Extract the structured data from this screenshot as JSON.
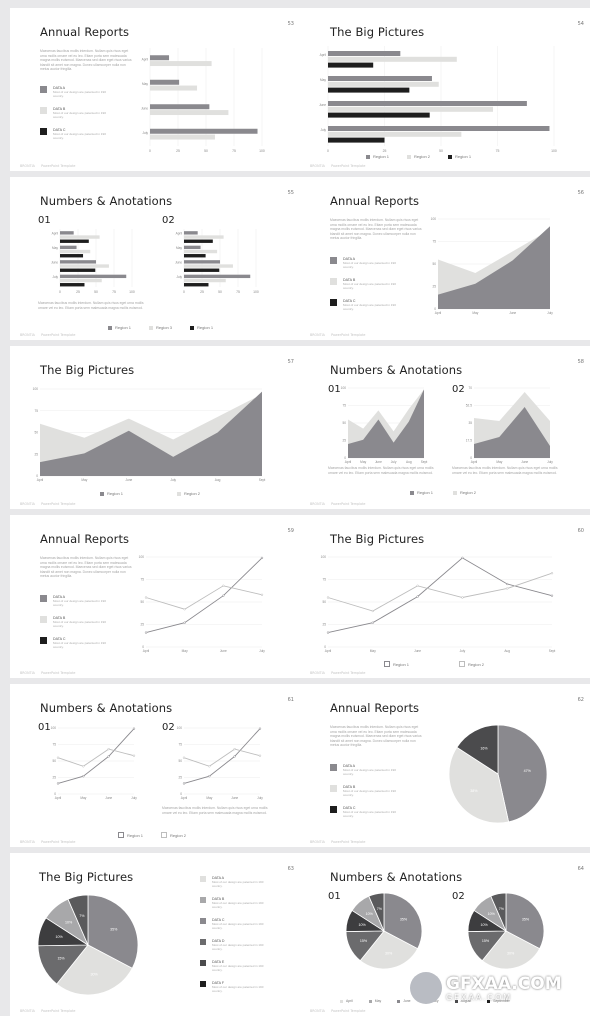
{
  "colors": {
    "dark": "#8a898e",
    "light": "#e0e0de",
    "black": "#1e1e1e",
    "grid": "#ececec"
  },
  "slides": [
    {
      "num": "53",
      "title": "Annual Reports"
    },
    {
      "num": "54",
      "title": "The Big Pictures"
    },
    {
      "num": "55",
      "title": "Numbers & Anotations"
    },
    {
      "num": "56",
      "title": "Annual Reports"
    },
    {
      "num": "57",
      "title": "The Big Pictures"
    },
    {
      "num": "58",
      "title": "Numbers & Anotations"
    },
    {
      "num": "59",
      "title": "Annual Reports"
    },
    {
      "num": "60",
      "title": "The Big Pictures"
    },
    {
      "num": "61",
      "title": "Numbers & Anotations"
    },
    {
      "num": "62",
      "title": "Annual Reports"
    },
    {
      "num": "63",
      "title": "The Big Pictures"
    },
    {
      "num": "64",
      "title": "Numbers & Anotations"
    }
  ],
  "footer": {
    "brand": "BRONTIA",
    "text": "PowerPoint Template"
  },
  "lorem": "Maecenas faucibus mollis interdum. Nullam quis risus eget urna mollis ornare vel eu leo. Etiam porta sem malesuada magna mollis euismod. Maecenas sed diam eget risus varius blandit sit amet non magna. Donec ullamcorper nulla non metus auctor fringilla.",
  "lorem_short": "Maecenas faucibus mollis interdum. Nullam quis risus eget urna mollis ornare vel eu leo. Etiam porta sem malesuada magna mollis euismod.",
  "data_legend": [
    {
      "label": "DATA A",
      "desc": "Most of our design are patented in 190 country."
    },
    {
      "label": "DATA B",
      "desc": "Most of our design are patented in 190 country."
    },
    {
      "label": "DATA C",
      "desc": "Most of our design are patented in 190 country."
    }
  ],
  "data_list6": [
    {
      "label": "DATA A",
      "desc": "Most of our design are patented in 190 country."
    },
    {
      "label": "DATA B",
      "desc": "Most of our design are patented in 190 country."
    },
    {
      "label": "DATA C",
      "desc": "Most of our design are patented in 190 country."
    },
    {
      "label": "DATA D",
      "desc": "Most of our design are patented in 190 country."
    },
    {
      "label": "DATA E",
      "desc": "Most of our design are patented in 190 country."
    },
    {
      "label": "DATA F",
      "desc": "Most of our design are patented in 190 country."
    }
  ],
  "section_labels": {
    "a": "01",
    "b": "02"
  },
  "legend": {
    "region1": "Region 1",
    "region2": "Region 2",
    "region3": "Region 3"
  },
  "pie_legend": [
    "April",
    "May",
    "June",
    "July",
    "August",
    "September"
  ],
  "watermark": {
    "main": "GFXAA.COM",
    "sub": "GFXAA.COM"
  },
  "chart_data": [
    {
      "slide": "53",
      "type": "bar",
      "categories": [
        "April",
        "May",
        "June",
        "July"
      ],
      "xticks": [
        "0",
        "25",
        "50",
        "75",
        "100"
      ],
      "xlim": [
        0,
        100
      ],
      "series": [
        {
          "values": [
            17,
            26,
            53,
            96
          ]
        },
        {
          "values": [
            55,
            42,
            70,
            58
          ]
        }
      ]
    },
    {
      "slide": "54",
      "type": "bar",
      "categories": [
        "April",
        "May",
        "June",
        "July"
      ],
      "xticks": [
        "0",
        "25",
        "50",
        "75",
        "100"
      ],
      "xlim": [
        0,
        100
      ],
      "series": [
        {
          "name": "Region 1",
          "values": [
            32,
            46,
            88,
            98
          ]
        },
        {
          "name": "Region 2",
          "values": [
            57,
            49,
            73,
            59
          ]
        },
        {
          "name": "Region 3",
          "values": [
            20,
            36,
            45,
            25
          ]
        }
      ]
    },
    {
      "slide": "55a",
      "type": "bar",
      "categories": [
        "April",
        "May",
        "June",
        "July"
      ],
      "xticks": [
        "0",
        "25",
        "50",
        "75",
        "100"
      ],
      "xlim": [
        0,
        100
      ],
      "series": [
        {
          "name": "Region 1",
          "values": [
            19,
            23,
            50,
            92
          ]
        },
        {
          "name": "Region 2",
          "values": [
            55,
            42,
            68,
            58
          ]
        },
        {
          "name": "Region 3",
          "values": [
            40,
            32,
            49,
            34
          ]
        }
      ]
    },
    {
      "slide": "55b",
      "type": "bar",
      "categories": [
        "April",
        "May",
        "June",
        "July"
      ],
      "xticks": [
        "0",
        "25",
        "50",
        "75",
        "100"
      ],
      "xlim": [
        0,
        100
      ],
      "series": [
        {
          "name": "Region 1",
          "values": [
            19,
            23,
            50,
            92
          ]
        },
        {
          "name": "Region 2",
          "values": [
            55,
            46,
            68,
            58
          ]
        },
        {
          "name": "Region 3",
          "values": [
            40,
            30,
            49,
            34
          ]
        }
      ]
    },
    {
      "slide": "56",
      "type": "area",
      "categories": [
        "April",
        "May",
        "June",
        "July"
      ],
      "yticks": [
        "0",
        "25",
        "50",
        "75",
        "100"
      ],
      "ylim": [
        0,
        100
      ],
      "series": [
        {
          "values": [
            55,
            40,
            64,
            88
          ]
        },
        {
          "values": [
            16,
            28,
            54,
            92
          ]
        }
      ]
    },
    {
      "slide": "57",
      "type": "area",
      "categories": [
        "April",
        "May",
        "June",
        "July",
        "Aug",
        "Sept"
      ],
      "yticks": [
        "0",
        "25",
        "50",
        "75",
        "100"
      ],
      "ylim": [
        0,
        100
      ],
      "series": [
        {
          "name": "Region 2",
          "values": [
            60,
            44,
            66,
            42,
            68,
            94
          ]
        },
        {
          "name": "Region 1",
          "values": [
            16,
            26,
            52,
            22,
            50,
            97
          ]
        }
      ]
    },
    {
      "slide": "58a",
      "type": "area",
      "categories": [
        "April",
        "May",
        "June",
        "July",
        "Aug",
        "Sept"
      ],
      "yticks": [
        "0",
        "25",
        "50",
        "75",
        "100"
      ],
      "ylim": [
        0,
        100
      ],
      "series": [
        {
          "name": "Region 2",
          "values": [
            55,
            42,
            68,
            38,
            70,
            98
          ]
        },
        {
          "name": "Region 1",
          "values": [
            20,
            26,
            55,
            22,
            52,
            98
          ]
        }
      ]
    },
    {
      "slide": "58b",
      "type": "area",
      "categories": [
        "April",
        "May",
        "June",
        "July"
      ],
      "yticks": [
        "0",
        "17.5",
        "35",
        "52.5",
        "70"
      ],
      "ylim": [
        0,
        70
      ],
      "series": [
        {
          "name": "Region 2",
          "values": [
            40,
            37,
            66,
            37
          ]
        },
        {
          "name": "Region 1",
          "values": [
            14,
            21,
            51,
            12
          ]
        }
      ]
    },
    {
      "slide": "59",
      "type": "line",
      "categories": [
        "April",
        "May",
        "June",
        "July"
      ],
      "yticks": [
        "0",
        "25",
        "50",
        "75",
        "100"
      ],
      "ylim": [
        0,
        100
      ],
      "series": [
        {
          "name": "Region 1",
          "values": [
            16,
            27,
            57,
            99
          ]
        },
        {
          "name": "Region 2",
          "values": [
            55,
            42,
            68,
            58
          ]
        }
      ]
    },
    {
      "slide": "60",
      "type": "line",
      "categories": [
        "April",
        "May",
        "June",
        "July",
        "Aug",
        "Sept"
      ],
      "yticks": [
        "0",
        "25",
        "50",
        "75",
        "100"
      ],
      "ylim": [
        0,
        100
      ],
      "series": [
        {
          "name": "Region 1",
          "values": [
            16,
            27,
            56,
            99,
            70,
            57
          ]
        },
        {
          "name": "Region 2",
          "values": [
            55,
            40,
            68,
            55,
            65,
            82
          ]
        }
      ]
    },
    {
      "slide": "61a",
      "type": "line",
      "categories": [
        "April",
        "May",
        "June",
        "July"
      ],
      "yticks": [
        "0",
        "25",
        "50",
        "75",
        "100"
      ],
      "ylim": [
        0,
        100
      ],
      "series": [
        {
          "name": "Region 1",
          "values": [
            16,
            27,
            57,
            99
          ]
        },
        {
          "name": "Region 2",
          "values": [
            55,
            42,
            68,
            58
          ]
        }
      ]
    },
    {
      "slide": "61b",
      "type": "line",
      "categories": [
        "April",
        "May",
        "June",
        "July"
      ],
      "yticks": [
        "0",
        "25",
        "50",
        "75",
        "100"
      ],
      "ylim": [
        0,
        100
      ],
      "series": [
        {
          "name": "Region 1",
          "values": [
            16,
            27,
            57,
            99
          ]
        },
        {
          "name": "Region 2",
          "values": [
            55,
            42,
            68,
            58
          ]
        }
      ]
    },
    {
      "slide": "62",
      "type": "pie",
      "labels": [
        "47%",
        "38%",
        "16%"
      ],
      "values": [
        47,
        38,
        16
      ],
      "colors": [
        "#8a898e",
        "#e0e0de",
        "#4b4b4d"
      ]
    },
    {
      "slide": "63",
      "type": "pie",
      "labels": [
        "35%",
        "30%",
        "15%",
        "10%",
        "10%",
        "7%"
      ],
      "values": [
        35,
        30,
        15,
        10,
        10,
        7
      ],
      "colors": [
        "#8a898e",
        "#e0e0de",
        "#6b6b6d",
        "#3d3d3f",
        "#a8a8aa",
        "#5a5a5c"
      ]
    },
    {
      "slide": "64a",
      "type": "pie",
      "labels": [
        "35%",
        "30%",
        "15%",
        "10%",
        "10%",
        "7%"
      ],
      "values": [
        35,
        30,
        15,
        10,
        10,
        7
      ],
      "colors": [
        "#8a898e",
        "#e0e0de",
        "#6b6b6d",
        "#3d3d3f",
        "#a8a8aa",
        "#5a5a5c"
      ]
    },
    {
      "slide": "64b",
      "type": "pie",
      "labels": [
        "35%",
        "30%",
        "15%",
        "10%",
        "10%",
        "7%"
      ],
      "values": [
        35,
        30,
        15,
        10,
        10,
        7
      ],
      "colors": [
        "#8a898e",
        "#e0e0de",
        "#6b6b6d",
        "#3d3d3f",
        "#a8a8aa",
        "#5a5a5c"
      ]
    }
  ]
}
